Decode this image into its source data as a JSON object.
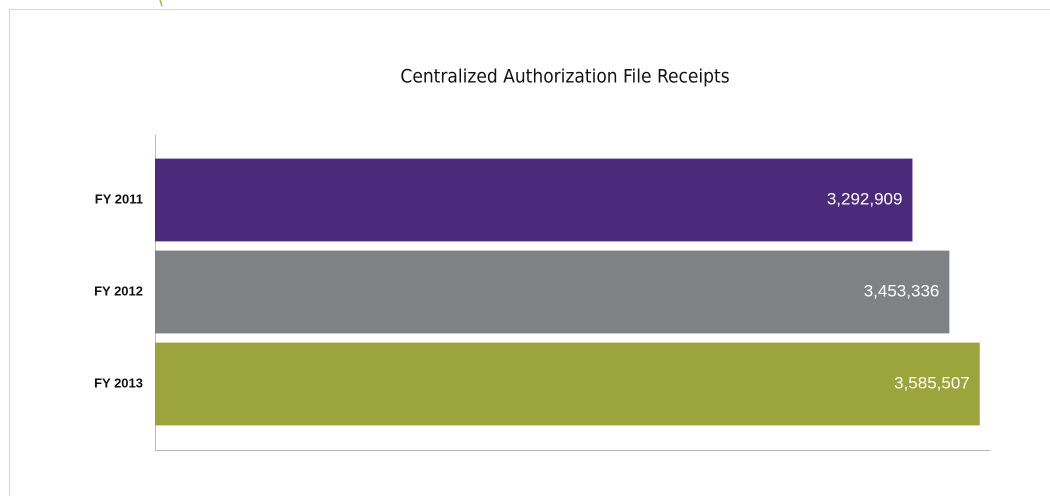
{
  "chart_data": {
    "type": "hbar",
    "title": "Centralized Authorization File Receipts",
    "categories": [
      "FY 2011",
      "FY 2012",
      "FY 2013"
    ],
    "values": [
      3292909,
      3453336,
      3585507
    ],
    "value_labels": [
      "3,292,909",
      "3,453,336",
      "3,585,507"
    ],
    "colors": [
      "#4b2a7b",
      "#808184",
      "#9ca53b"
    ],
    "xlim": [
      0,
      3630000
    ]
  }
}
